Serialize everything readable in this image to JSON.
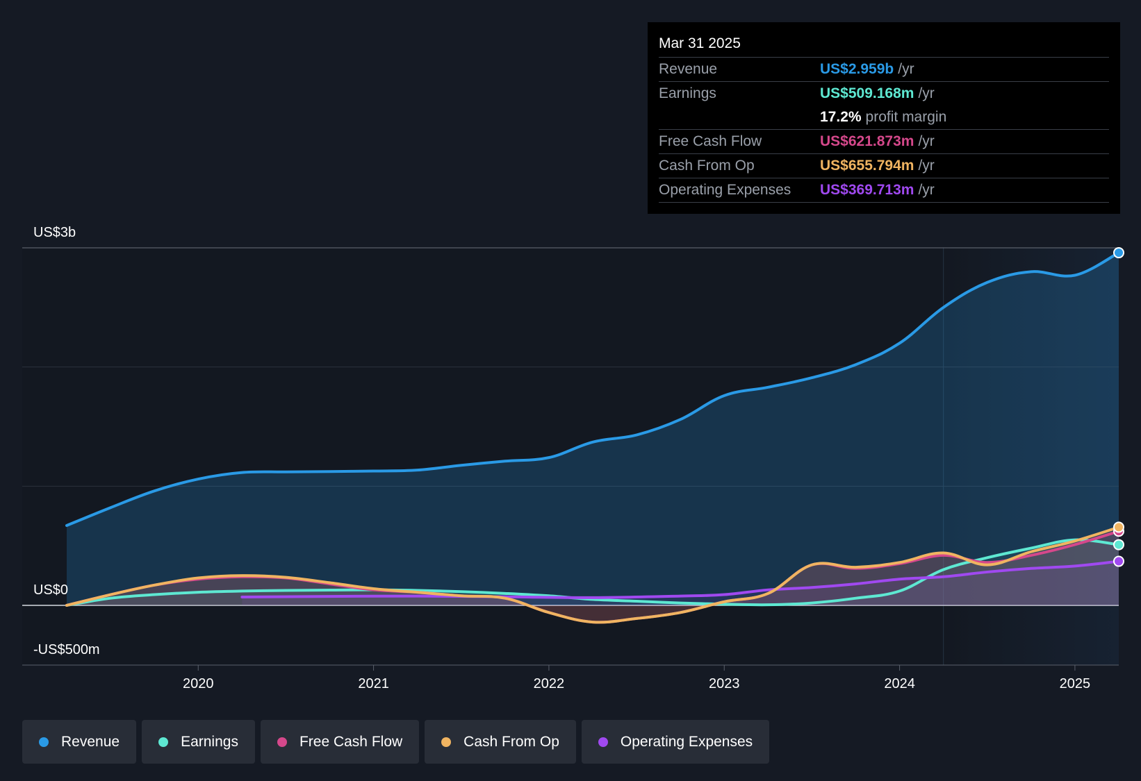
{
  "tooltip": {
    "date": "Mar 31 2025",
    "rows": [
      {
        "label": "Revenue",
        "value": "US$2.959b",
        "unit": "/yr",
        "color": "#2a9ae6"
      },
      {
        "label": "Earnings",
        "value": "US$509.168m",
        "unit": "/yr",
        "color": "#5ee8d2"
      },
      {
        "label": "",
        "margin_value": "17.2%",
        "margin_text": "profit margin"
      },
      {
        "label": "Free Cash Flow",
        "value": "US$621.873m",
        "unit": "/yr",
        "color": "#d5488b"
      },
      {
        "label": "Cash From Op",
        "value": "US$655.794m",
        "unit": "/yr",
        "color": "#f0b461"
      },
      {
        "label": "Operating Expenses",
        "value": "US$369.713m",
        "unit": "/yr",
        "color": "#a049f0"
      }
    ]
  },
  "legend": [
    {
      "label": "Revenue",
      "color": "#2a9ae6"
    },
    {
      "label": "Earnings",
      "color": "#5ee8d2"
    },
    {
      "label": "Free Cash Flow",
      "color": "#d5488b"
    },
    {
      "label": "Cash From Op",
      "color": "#f0b461"
    },
    {
      "label": "Operating Expenses",
      "color": "#a049f0"
    }
  ],
  "chart_data": {
    "type": "line",
    "y_labels": [
      {
        "text": "US$3b",
        "value": 3000
      },
      {
        "text": "US$0",
        "value": 0
      },
      {
        "text": "-US$500m",
        "value": -500
      }
    ],
    "ylim": [
      -500,
      3000
    ],
    "xlim": [
      2019.25,
      2025.25
    ],
    "x_ticks": [
      "2020",
      "2021",
      "2022",
      "2023",
      "2024",
      "2025"
    ],
    "x_tick_values": [
      2020,
      2021,
      2022,
      2023,
      2024,
      2025
    ],
    "gridlines": [
      3000,
      2000,
      1000,
      0
    ],
    "highlight_start": 2024.25,
    "series": [
      {
        "name": "Revenue",
        "color": "#2a9ae6",
        "points": [
          [
            2019.25,
            670
          ],
          [
            2019.5,
            820
          ],
          [
            2019.75,
            960
          ],
          [
            2020,
            1060
          ],
          [
            2020.25,
            1115
          ],
          [
            2020.5,
            1120
          ],
          [
            2020.75,
            1123
          ],
          [
            2021,
            1127
          ],
          [
            2021.25,
            1135
          ],
          [
            2021.5,
            1175
          ],
          [
            2021.75,
            1210
          ],
          [
            2022,
            1240
          ],
          [
            2022.25,
            1370
          ],
          [
            2022.5,
            1430
          ],
          [
            2022.75,
            1560
          ],
          [
            2023,
            1760
          ],
          [
            2023.25,
            1830
          ],
          [
            2023.5,
            1910
          ],
          [
            2023.75,
            2020
          ],
          [
            2024,
            2200
          ],
          [
            2024.25,
            2500
          ],
          [
            2024.5,
            2710
          ],
          [
            2024.75,
            2800
          ],
          [
            2025,
            2770
          ],
          [
            2025.25,
            2959
          ]
        ]
      },
      {
        "name": "Earnings",
        "color": "#5ee8d2",
        "points": [
          [
            2019.25,
            0
          ],
          [
            2019.5,
            60
          ],
          [
            2019.75,
            90
          ],
          [
            2020,
            110
          ],
          [
            2020.25,
            120
          ],
          [
            2020.5,
            125
          ],
          [
            2020.75,
            128
          ],
          [
            2021,
            130
          ],
          [
            2021.25,
            125
          ],
          [
            2021.5,
            115
          ],
          [
            2021.75,
            100
          ],
          [
            2022,
            80
          ],
          [
            2022.25,
            50
          ],
          [
            2022.5,
            35
          ],
          [
            2022.75,
            20
          ],
          [
            2023,
            10
          ],
          [
            2023.25,
            5
          ],
          [
            2023.5,
            20
          ],
          [
            2023.75,
            60
          ],
          [
            2024,
            120
          ],
          [
            2024.25,
            300
          ],
          [
            2024.5,
            400
          ],
          [
            2024.75,
            480
          ],
          [
            2025,
            550
          ],
          [
            2025.25,
            509.168
          ]
        ]
      },
      {
        "name": "Free Cash Flow",
        "color": "#d5488b",
        "points": [
          [
            2019.25,
            0
          ],
          [
            2019.5,
            90
          ],
          [
            2019.75,
            170
          ],
          [
            2020,
            220
          ],
          [
            2020.25,
            240
          ],
          [
            2020.5,
            230
          ],
          [
            2020.75,
            180
          ],
          [
            2021,
            130
          ],
          [
            2021.25,
            110
          ],
          [
            2021.5,
            80
          ],
          [
            2021.75,
            60
          ],
          [
            2022,
            -60
          ],
          [
            2022.25,
            -140
          ],
          [
            2022.5,
            -110
          ],
          [
            2022.75,
            -60
          ],
          [
            2023,
            30
          ],
          [
            2023.25,
            100
          ],
          [
            2023.5,
            340
          ],
          [
            2023.75,
            310
          ],
          [
            2024,
            350
          ],
          [
            2024.25,
            420
          ],
          [
            2024.5,
            360
          ],
          [
            2024.75,
            420
          ],
          [
            2025,
            510
          ],
          [
            2025.25,
            621.873
          ]
        ]
      },
      {
        "name": "Cash From Op",
        "color": "#f0b461",
        "points": [
          [
            2019.25,
            0
          ],
          [
            2019.5,
            90
          ],
          [
            2019.75,
            170
          ],
          [
            2020,
            230
          ],
          [
            2020.25,
            250
          ],
          [
            2020.5,
            235
          ],
          [
            2020.75,
            190
          ],
          [
            2021,
            140
          ],
          [
            2021.25,
            110
          ],
          [
            2021.5,
            80
          ],
          [
            2021.75,
            60
          ],
          [
            2022,
            -60
          ],
          [
            2022.25,
            -140
          ],
          [
            2022.5,
            -110
          ],
          [
            2022.75,
            -60
          ],
          [
            2023,
            30
          ],
          [
            2023.25,
            100
          ],
          [
            2023.5,
            340
          ],
          [
            2023.75,
            320
          ],
          [
            2024,
            360
          ],
          [
            2024.25,
            440
          ],
          [
            2024.5,
            340
          ],
          [
            2024.75,
            450
          ],
          [
            2025,
            540
          ],
          [
            2025.25,
            655.794
          ]
        ]
      },
      {
        "name": "Operating Expenses",
        "color": "#a049f0",
        "points": [
          [
            2020.25,
            70
          ],
          [
            2020.75,
            75
          ],
          [
            2021.25,
            78
          ],
          [
            2021.75,
            72
          ],
          [
            2022.25,
            65
          ],
          [
            2022.75,
            78
          ],
          [
            2023,
            90
          ],
          [
            2023.25,
            130
          ],
          [
            2023.5,
            150
          ],
          [
            2023.75,
            180
          ],
          [
            2024,
            220
          ],
          [
            2024.25,
            240
          ],
          [
            2024.5,
            280
          ],
          [
            2024.75,
            310
          ],
          [
            2025,
            330
          ],
          [
            2025.25,
            369.713
          ]
        ]
      }
    ]
  }
}
